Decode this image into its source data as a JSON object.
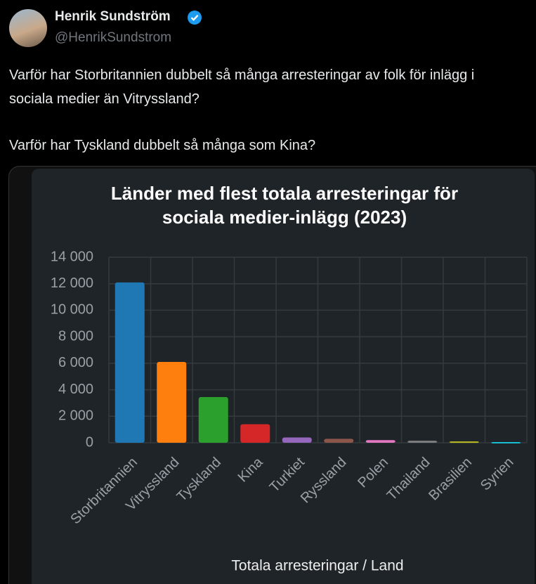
{
  "tweet": {
    "name": "Henrik Sundström",
    "handle": "@HenrikSundstrom",
    "paragraphs": [
      "Varför har Storbritannien dubbelt så många arresteringar av folk för inlägg i sociala medier än Vitryssland?",
      "Varför har Tyskland dubbelt så många som Kina?"
    ]
  },
  "chart_data": {
    "type": "bar",
    "title": "Länder med flest totala arresteringar för sociala medier-inlägg (2023)",
    "x_label": "Totala arresteringar / Land",
    "categories": [
      "Storbritannien",
      "Vitryssland",
      "Tyskland",
      "Kina",
      "Turkiet",
      "Ryssland",
      "Polen",
      "Thailand",
      "Brasilien",
      "Syrien"
    ],
    "values": [
      12100,
      6100,
      3450,
      1400,
      400,
      300,
      200,
      150,
      100,
      50
    ],
    "colors": [
      "#1f77b4",
      "#ff7f0e",
      "#2ca02c",
      "#d62728",
      "#9467bd",
      "#8c564b",
      "#e377c2",
      "#7f7f7f",
      "#bcbd22",
      "#17becf"
    ],
    "ylim": [
      0,
      14000
    ],
    "yticks": [
      0,
      {
        "value": 2000,
        "label": "2 000"
      },
      {
        "value": 4000,
        "label": "4 000"
      },
      {
        "value": 6000,
        "label": "6 000"
      },
      {
        "value": 8000,
        "label": "8 000"
      },
      {
        "value": 10000,
        "label": "10 000"
      },
      {
        "value": 12000,
        "label": "12 000"
      },
      {
        "value": 14000,
        "label": "14 000"
      }
    ],
    "grid": true
  }
}
